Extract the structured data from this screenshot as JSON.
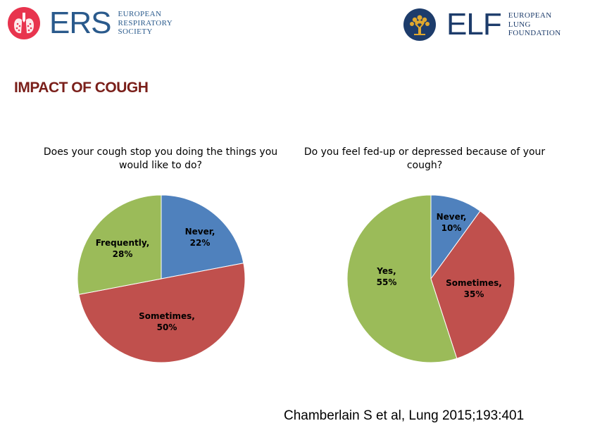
{
  "header": {
    "ers_logo": {
      "abbr": "ERS",
      "words": [
        "EUROPEAN",
        "RESPIRATORY",
        "SOCIETY"
      ]
    },
    "elf_logo": {
      "abbr": "ELF",
      "words": [
        "EUROPEAN",
        "LUNG",
        "FOUNDATION"
      ]
    }
  },
  "slide_title": "IMPACT OF COUGH",
  "citation": "Chamberlain S et al, Lung 2015;193:401",
  "colors": {
    "blue": "#4f81bd",
    "red": "#c0504d",
    "green": "#9bbb59",
    "ers_red": "#e8344e",
    "title_maroon": "#7a1f1a"
  },
  "chart_data": [
    {
      "type": "pie",
      "title": "Does your cough stop you doing the things you would like to do?",
      "slices": [
        {
          "label": "Never,",
          "pct_label": "22%",
          "value": 22,
          "color": "#4f81bd"
        },
        {
          "label": "Sometimes,",
          "pct_label": "50%",
          "value": 50,
          "color": "#c0504d"
        },
        {
          "label": "Frequently,",
          "pct_label": "28%",
          "value": 28,
          "color": "#9bbb59"
        }
      ],
      "start": "12 o'clock, clockwise",
      "legend": "none (data labels on slices)"
    },
    {
      "type": "pie",
      "title": "Do you feel fed-up or depressed because of your cough?",
      "slices": [
        {
          "label": "Never,",
          "pct_label": "10%",
          "value": 10,
          "color": "#4f81bd"
        },
        {
          "label": "Sometimes,",
          "pct_label": "35%",
          "value": 35,
          "color": "#c0504d"
        },
        {
          "label": "Yes,",
          "pct_label": "55%",
          "value": 55,
          "color": "#9bbb59"
        }
      ],
      "start": "12 o'clock, clockwise",
      "legend": "none (data labels on slices)"
    }
  ]
}
